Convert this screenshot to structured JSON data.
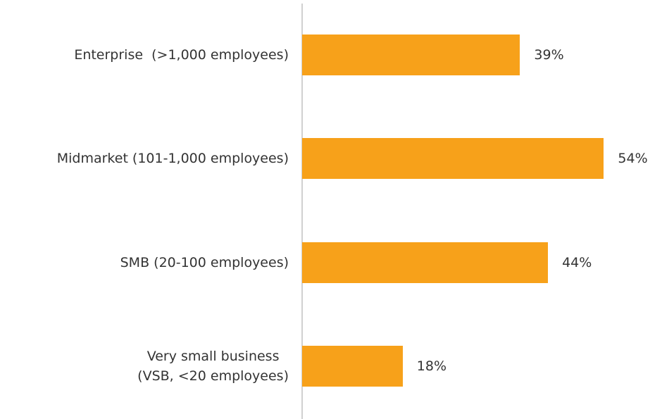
{
  "chart_data": {
    "type": "bar",
    "orientation": "horizontal",
    "categories": [
      "Enterprise  (>1,000 employees)",
      "Midmarket (101-1,000 employees)",
      "SMB (20-100 employees)",
      "Very small business\n(VSB, <20 employees)"
    ],
    "values": [
      39,
      54,
      44,
      18
    ],
    "value_labels": [
      "39%",
      "54%",
      "44%",
      "18%"
    ],
    "color": "#f7a11a",
    "xlim": [
      0,
      60
    ]
  }
}
